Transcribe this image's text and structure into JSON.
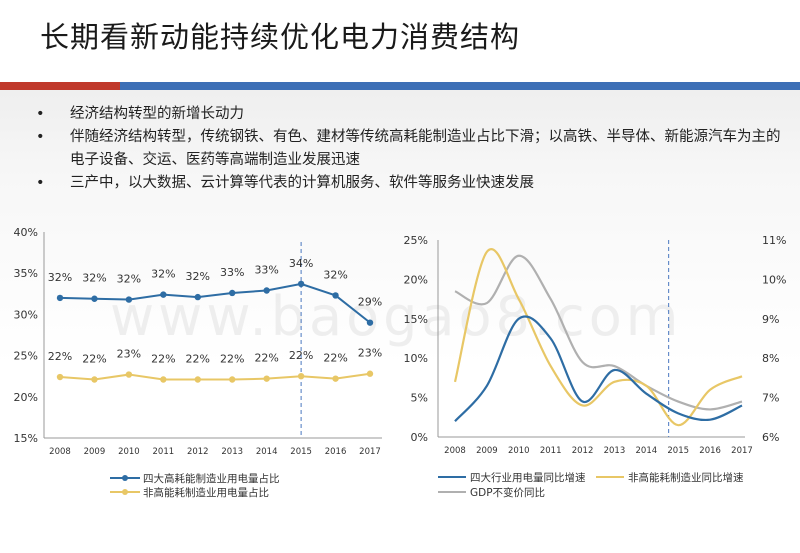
{
  "header": {
    "title": "长期看新动能持续优化电力消费结构",
    "bar_colors": [
      "#c0392b",
      "#3d6fb6"
    ]
  },
  "bullets": [
    "经济结构转型的新增长动力",
    "伴随经济结构转型，传统钢铁、有色、建材等传统高耗能制造业占比下滑；以高铁、半导体、新能源汽车为主的电子设备、交运、医药等高端制造业发展迅速",
    "三产中，以大数据、云计算等代表的计算机服务、软件等服务业快速发展"
  ],
  "watermark": "www.baogao8.com",
  "chart_data": [
    {
      "type": "line",
      "x": [
        "2008",
        "2009",
        "2010",
        "2011",
        "2012",
        "2013",
        "2014",
        "2015",
        "2016",
        "2017"
      ],
      "ylim": [
        0.15,
        0.4
      ],
      "yticks": [
        "15%",
        "20%",
        "25%",
        "30%",
        "35%",
        "40%"
      ],
      "vline_at": "2015",
      "legend_placement": "bottom",
      "series": [
        {
          "name": "四大高耗能制造业用电量占比",
          "color": "#2e6da4",
          "values": [
            0.32,
            0.319,
            0.318,
            0.324,
            0.321,
            0.326,
            0.329,
            0.337,
            0.323,
            0.29
          ],
          "labels": [
            "32%",
            "32%",
            "32%",
            "32%",
            "32%",
            "33%",
            "33%",
            "34%",
            "32%",
            "29%"
          ]
        },
        {
          "name": "非高能耗制造业用电量占比",
          "color": "#e8c766",
          "values": [
            0.224,
            0.221,
            0.227,
            0.221,
            0.221,
            0.221,
            0.222,
            0.225,
            0.222,
            0.228
          ],
          "labels": [
            "22%",
            "22%",
            "23%",
            "22%",
            "22%",
            "22%",
            "22%",
            "22%",
            "22%",
            "23%"
          ]
        }
      ]
    },
    {
      "type": "line",
      "x": [
        "2008",
        "2009",
        "2010",
        "2011",
        "2012",
        "2013",
        "2014",
        "2015",
        "2016",
        "2017"
      ],
      "ylim_left": [
        0,
        0.25
      ],
      "yticks_left": [
        "0%",
        "5%",
        "10%",
        "15%",
        "20%",
        "25%"
      ],
      "ylim_right": [
        0.06,
        0.11
      ],
      "yticks_right": [
        "6%",
        "7%",
        "8%",
        "9%",
        "10%",
        "11%"
      ],
      "vline_at": "2014.7",
      "legend_placement": "bottom",
      "series": [
        {
          "name": "四大行业用电量同比增速",
          "color": "#2e6da4",
          "axis": "left",
          "values": [
            0.02,
            0.065,
            0.15,
            0.125,
            0.045,
            0.085,
            0.055,
            0.03,
            0.022,
            0.04
          ]
        },
        {
          "name": "非高能耗制造业同比增速",
          "color": "#e8c766",
          "axis": "left",
          "values": [
            0.07,
            0.235,
            0.175,
            0.09,
            0.04,
            0.07,
            0.065,
            0.015,
            0.06,
            0.077
          ]
        },
        {
          "name": "GDP不变价同比",
          "color": "#b0b0b0",
          "axis": "right",
          "values": [
            0.097,
            0.094,
            0.106,
            0.095,
            0.079,
            0.078,
            0.073,
            0.069,
            0.067,
            0.069
          ]
        }
      ]
    }
  ]
}
